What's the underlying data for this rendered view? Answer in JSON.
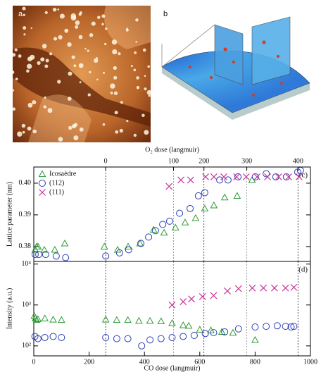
{
  "panel_labels": [
    "a",
    "b"
  ],
  "chart_data": [
    {
      "type": "scatter",
      "panel": "(c)",
      "ylabel": "Lattice parameter (nm)",
      "x2label": "O₂ dose (langmuir)",
      "x2ticks": [
        0,
        100,
        200,
        300,
        400
      ],
      "x2tick_positions": [
        260,
        505,
        615,
        770,
        955
      ],
      "xlim": [
        0,
        1000
      ],
      "ylim": [
        0.3753,
        0.4051
      ],
      "yticks": [
        0.38,
        0.39,
        {
          "value": 0.4,
          "label": "0.40"
        }
      ],
      "legend": "top-left",
      "series": [
        {
          "name": "Icosaèdre",
          "color": "#2e9a35",
          "marker": "triangle",
          "x": [
            5,
            10,
            15,
            38,
            76,
            112,
            255,
            303,
            341,
            384,
            433,
            471,
            512,
            547,
            585,
            618,
            651,
            690,
            735,
            789
          ],
          "values": [
            0.379,
            0.38,
            0.38,
            0.379,
            0.379,
            0.381,
            0.38,
            0.379,
            0.38,
            0.381,
            0.3853,
            0.3844,
            0.386,
            0.3876,
            0.389,
            0.392,
            0.393,
            0.3955,
            0.396,
            0.401
          ]
        },
        {
          "name": "(112)",
          "color": "#2c3eb5",
          "marker": "circle",
          "x": [
            5,
            18,
            43,
            81,
            115,
            260,
            310,
            343,
            387,
            415,
            440,
            466,
            491,
            527,
            565,
            595,
            618,
            672,
            702,
            738,
            801,
            840,
            875,
            913,
            954,
            964
          ],
          "values": [
            0.3775,
            0.3775,
            0.3775,
            0.377,
            0.3765,
            0.377,
            0.378,
            0.379,
            0.381,
            0.383,
            0.385,
            0.387,
            0.388,
            0.3905,
            0.392,
            0.396,
            0.397,
            0.401,
            0.401,
            0.402,
            0.402,
            0.403,
            0.402,
            0.402,
            0.4035,
            0.404
          ]
        },
        {
          "name": "(111)",
          "color": "#c8359a",
          "marker": "cross",
          "x": [
            489,
            532,
            567,
            621,
            651,
            687,
            733,
            768,
            807,
            845,
            885,
            921,
            959
          ],
          "values": [
            0.399,
            0.401,
            0.401,
            0.402,
            0.402,
            0.402,
            0.402,
            0.402,
            0.402,
            0.402,
            0.402,
            0.402,
            0.402
          ]
        }
      ]
    },
    {
      "type": "scatter",
      "panel": "(d)",
      "ylabel": "Intensity (a.u.)",
      "log": true,
      "xlabel": "CO dose (langmuir)",
      "xlim": [
        0,
        1000
      ],
      "xticks": [
        0,
        200,
        400,
        600,
        800,
        1000
      ],
      "ylim": [
        57,
        11600
      ],
      "yticks": [
        {
          "value": 100,
          "label": "10²"
        },
        {
          "value": 1000,
          "label": "10³"
        },
        {
          "value": 10000,
          "label": "10⁴"
        }
      ],
      "series": [
        {
          "color": "#2e9a35",
          "marker": "triangle",
          "x": [
            2,
            6,
            10,
            15,
            40,
            70,
            100,
            260,
            300,
            340,
            380,
            420,
            460,
            500,
            540,
            560,
            600,
            640,
            680,
            720,
            800
          ],
          "values": [
            540,
            470,
            430,
            450,
            470,
            440,
            430,
            440,
            430,
            430,
            410,
            410,
            400,
            360,
            320,
            310,
            250,
            240,
            220,
            210,
            140
          ]
        },
        {
          "color": "#2c3eb5",
          "marker": "circle",
          "x": [
            4,
            15,
            40,
            70,
            100,
            260,
            300,
            340,
            390,
            420,
            460,
            500,
            540,
            580,
            620,
            650,
            690,
            740,
            800,
            840,
            880,
            910,
            930,
            940
          ],
          "values": [
            170,
            150,
            160,
            170,
            160,
            160,
            150,
            150,
            100,
            140,
            150,
            160,
            170,
            180,
            200,
            210,
            220,
            260,
            290,
            300,
            310,
            300,
            290,
            300
          ]
        },
        {
          "color": "#c8359a",
          "marker": "cross",
          "x": [
            500,
            540,
            570,
            610,
            650,
            700,
            740,
            790,
            830,
            870,
            910,
            940
          ],
          "values": [
            1000,
            1200,
            1400,
            1600,
            1700,
            2200,
            2500,
            2600,
            2600,
            2600,
            2600,
            2700
          ]
        }
      ]
    }
  ]
}
